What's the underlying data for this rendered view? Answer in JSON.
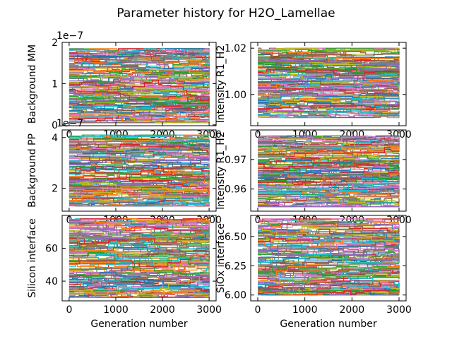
{
  "figure": {
    "title": "Parameter history for H2O_Lamellae"
  },
  "chart_data": [
    {
      "type": "line",
      "panel": "top-left",
      "ylabel": "Background MM",
      "xlabel": "",
      "offset_text": "1e−7",
      "xlim": [
        -150,
        3150
      ],
      "ylim": [
        -0.02,
        2.0
      ],
      "y_scale_note": "values × 1e-7",
      "xticks": [
        0,
        1000,
        2000,
        3000
      ],
      "xtick_labels": [
        "0",
        "1000",
        "2000",
        "3000"
      ],
      "yticks": [
        0,
        1,
        2
      ],
      "ytick_labels": [
        "0",
        "1",
        "2"
      ],
      "series_count": 150,
      "series_range": [
        0.05,
        1.85
      ],
      "x_range": [
        0,
        3000
      ]
    },
    {
      "type": "line",
      "panel": "top-right",
      "ylabel": "Intensity R1_H2",
      "xlabel": "",
      "offset_text": "",
      "xlim": [
        -150,
        3150
      ],
      "ylim": [
        0.9865,
        1.0225
      ],
      "xticks": [
        0,
        1000,
        2000,
        3000
      ],
      "xtick_labels": [
        "0",
        "1000",
        "2000",
        "3000"
      ],
      "yticks": [
        1.0,
        1.02
      ],
      "ytick_labels": [
        "1.00",
        "1.02"
      ],
      "series_count": 150,
      "series_range": [
        0.99,
        1.02
      ],
      "x_range": [
        0,
        3000
      ]
    },
    {
      "type": "line",
      "panel": "middle-left",
      "ylabel": "Background PP",
      "xlabel": "",
      "offset_text": "1e−7",
      "xlim": [
        -150,
        3150
      ],
      "ylim": [
        1.1,
        4.3
      ],
      "y_scale_note": "values × 1e-7",
      "xticks": [
        0,
        1000,
        2000,
        3000
      ],
      "xtick_labels": [
        "0",
        "1000",
        "2000",
        "3000"
      ],
      "yticks": [
        2,
        4
      ],
      "ytick_labels": [
        "2",
        "4"
      ],
      "series_count": 150,
      "series_range": [
        1.3,
        4.1
      ],
      "x_range": [
        0,
        3000
      ]
    },
    {
      "type": "line",
      "panel": "middle-right",
      "ylabel": "Intensity R1_H2",
      "xlabel": "",
      "offset_text": "",
      "xlim": [
        -150,
        3150
      ],
      "ylim": [
        0.9525,
        0.98
      ],
      "xticks": [
        0,
        1000,
        2000,
        3000
      ],
      "xtick_labels": [
        "0",
        "1000",
        "2000",
        "3000"
      ],
      "yticks": [
        0.96,
        0.97
      ],
      "ytick_labels": [
        "0.96",
        "0.97"
      ],
      "series_count": 150,
      "series_range": [
        0.954,
        0.978
      ],
      "x_range": [
        0,
        3000
      ]
    },
    {
      "type": "line",
      "panel": "bottom-left",
      "ylabel": "Silicon interface",
      "xlabel": "Generation number",
      "offset_text": "",
      "xlim": [
        -150,
        3150
      ],
      "ylim": [
        28,
        80
      ],
      "xticks": [
        0,
        1000,
        2000,
        3000
      ],
      "xtick_labels": [
        "0",
        "1000",
        "2000",
        "3000"
      ],
      "yticks": [
        40,
        60
      ],
      "ytick_labels": [
        "40",
        "60"
      ],
      "series_count": 150,
      "series_range": [
        30,
        78
      ],
      "x_range": [
        0,
        3000
      ]
    },
    {
      "type": "line",
      "panel": "bottom-right",
      "ylabel": "SiOx interface",
      "xlabel": "Generation number",
      "offset_text": "",
      "xlim": [
        -150,
        3150
      ],
      "ylim": [
        5.95,
        6.68
      ],
      "xticks": [
        0,
        1000,
        2000,
        3000
      ],
      "xtick_labels": [
        "0",
        "1000",
        "2000",
        "3000"
      ],
      "yticks": [
        6.0,
        6.25,
        6.5
      ],
      "ytick_labels": [
        "6.00",
        "6.25",
        "6.50"
      ],
      "series_count": 150,
      "series_range": [
        6.0,
        6.65
      ],
      "x_range": [
        0,
        3000
      ]
    }
  ],
  "palette": [
    "#1f77b4",
    "#ff7f0e",
    "#2ca02c",
    "#d62728",
    "#9467bd",
    "#8c564b",
    "#e377c2",
    "#7f7f7f",
    "#bcbd22",
    "#17becf"
  ]
}
